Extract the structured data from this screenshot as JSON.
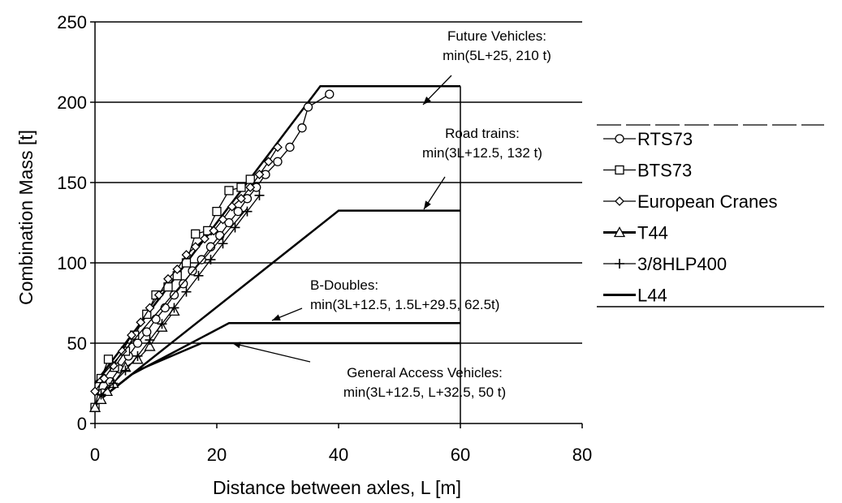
{
  "chart_data": {
    "type": "line",
    "title": "",
    "xlabel": "Distance between axles, L [m]",
    "ylabel": "Combination Mass [t]",
    "xlim": [
      0,
      80
    ],
    "ylim": [
      0,
      250
    ],
    "xticks": [
      0,
      20,
      40,
      60,
      80
    ],
    "yticks": [
      0,
      50,
      100,
      150,
      200,
      250
    ],
    "grid": "horizontal",
    "legend_position": "right",
    "colors": {
      "line": "#000000",
      "background": "#ffffff"
    },
    "legend": [
      {
        "label": "RTS73",
        "marker": "circle"
      },
      {
        "label": "BTS73",
        "marker": "square"
      },
      {
        "label": "European Cranes",
        "marker": "diamond"
      },
      {
        "label": "T44",
        "marker": "triangle"
      },
      {
        "label": "3/8HLP400",
        "marker": "plus"
      },
      {
        "label": "L44",
        "marker": "none"
      }
    ],
    "limit_lines": [
      {
        "id": "future",
        "points": [
          [
            0,
            25
          ],
          [
            37,
            210
          ],
          [
            60,
            210
          ]
        ],
        "width": 2.5,
        "label": [
          "Future Vehicles:",
          "min(5L+25, 210  t)"
        ]
      },
      {
        "id": "road-trains",
        "points": [
          [
            0,
            12.5
          ],
          [
            40,
            132.5
          ],
          [
            60,
            132.5
          ]
        ],
        "width": 2.5,
        "label": [
          "Road trains:",
          "min(3L+12.5, 132 t)"
        ]
      },
      {
        "id": "b-doubles",
        "points": [
          [
            0,
            12.5
          ],
          [
            6,
            30.5
          ],
          [
            22,
            62.5
          ],
          [
            60,
            62.5
          ]
        ],
        "width": 2.5,
        "label": [
          "B-Doubles:",
          "min(3L+12.5, 1.5L+29.5, 62.5t)"
        ]
      },
      {
        "id": "general-access",
        "points": [
          [
            0,
            12.5
          ],
          [
            6.7,
            32.5
          ],
          [
            17.5,
            50
          ],
          [
            60,
            50
          ]
        ],
        "width": 2.5,
        "label": [
          "General Access Vehicles:",
          "min(3L+12.5, L+32.5, 50 t)"
        ]
      }
    ],
    "series": [
      {
        "name": "RTS73",
        "marker": "circle",
        "x": [
          0,
          1.2,
          2.5,
          4,
          5.5,
          7,
          8.5,
          10,
          11.5,
          13,
          14.5,
          16,
          17.5,
          19,
          20.5,
          22,
          23.5,
          25,
          26.5,
          28,
          30,
          32,
          34,
          35,
          38.5
        ],
        "y": [
          10,
          19,
          26,
          34,
          42,
          50,
          57,
          65,
          72,
          80,
          87,
          95,
          102,
          110,
          117,
          125,
          132,
          140,
          147,
          155,
          163,
          172,
          184,
          197,
          205
        ]
      },
      {
        "name": "BTS73",
        "marker": "square",
        "x": [
          0,
          1,
          2.2,
          3.2,
          5,
          6.5,
          8.5,
          10,
          12,
          13.5,
          15,
          16.5,
          18.5,
          20,
          22,
          24,
          25.5
        ],
        "y": [
          10,
          28,
          40,
          35,
          45,
          55,
          68,
          80,
          85,
          92,
          100,
          118,
          120,
          132,
          145,
          147,
          152
        ]
      },
      {
        "name": "European Cranes",
        "marker": "diamond",
        "x": [
          0,
          1.5,
          3,
          4.5,
          6,
          7.5,
          9,
          10.5,
          12,
          13.5,
          15,
          16.5,
          18,
          19.5,
          21,
          22.5,
          24,
          25.5,
          27,
          28.5,
          30
        ],
        "y": [
          20,
          28,
          36,
          45,
          55,
          63,
          72,
          80,
          90,
          96,
          105,
          110,
          115,
          120,
          127,
          135,
          140,
          147,
          155,
          163,
          172
        ]
      },
      {
        "name": "T44",
        "marker": "triangle",
        "x": [
          0,
          1,
          2,
          3,
          5,
          7,
          9,
          11,
          13
        ],
        "y": [
          10,
          15,
          20,
          25,
          35,
          40,
          48,
          60,
          70
        ]
      },
      {
        "name": "3/8HLP400",
        "marker": "plus",
        "x": [
          1,
          3,
          5,
          7,
          9,
          11,
          13,
          15,
          17,
          19,
          21,
          23,
          25,
          27
        ],
        "y": [
          18,
          25,
          33,
          42,
          52,
          62,
          72,
          82,
          92,
          102,
          112,
          122,
          132,
          142
        ]
      },
      {
        "name": "L44",
        "marker": "none",
        "x": [
          0,
          5,
          10,
          15,
          20,
          25
        ],
        "y": [
          25,
          46,
          68,
          90,
          112,
          134
        ]
      }
    ]
  }
}
